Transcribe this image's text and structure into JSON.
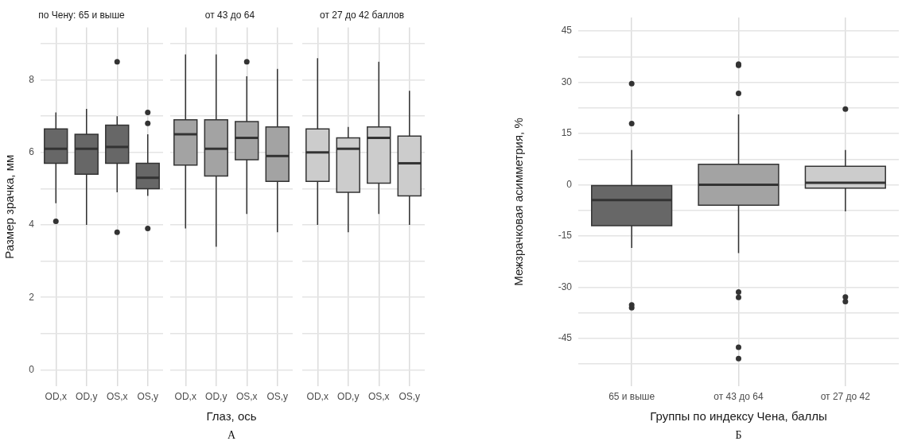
{
  "chart_data": [
    {
      "type": "box",
      "title": "по Чену: 65 и выше",
      "ylabel": "Размер зрачка, мм",
      "categories": [
        "OD,x",
        "OD,y",
        "OS,x",
        "OS,y"
      ],
      "colors": [
        "#676767",
        "#676767",
        "#676767",
        "#676767"
      ],
      "boxes": [
        {
          "low": 4.6,
          "q1": 5.7,
          "median": 6.1,
          "q3": 6.65,
          "high": 7.1,
          "outliers": [
            4.1
          ]
        },
        {
          "low": 4.0,
          "q1": 5.4,
          "median": 6.1,
          "q3": 6.5,
          "high": 7.2
        },
        {
          "low": 4.9,
          "q1": 5.7,
          "median": 6.15,
          "q3": 6.75,
          "high": 7.0,
          "outliers": [
            8.5,
            3.8
          ]
        },
        {
          "low": 4.8,
          "q1": 5.0,
          "median": 5.3,
          "q3": 5.7,
          "high": 6.5,
          "outliers": [
            7.1,
            6.8,
            3.9
          ]
        }
      ],
      "ylim": [
        -0.45,
        9.45
      ],
      "yticks": [
        0,
        {
          "value": 1,
          "label": null
        },
        2,
        {
          "value": 3,
          "label": null
        },
        4,
        {
          "value": 5,
          "label": null
        },
        6,
        {
          "value": 7,
          "label": null
        },
        8,
        {
          "value": 9,
          "label": null
        }
      ],
      "grid": true
    },
    {
      "type": "box",
      "title": "от 43 до 64",
      "xlabel": "Глаз, ось",
      "annotations": [
        "А"
      ],
      "categories": [
        "OD,x",
        "OD,y",
        "OS,x",
        "OS,y"
      ],
      "colors": [
        "#a3a3a3",
        "#a3a3a3",
        "#a3a3a3",
        "#a3a3a3"
      ],
      "boxes": [
        {
          "low": 3.9,
          "q1": 5.65,
          "median": 6.5,
          "q3": 6.9,
          "high": 8.7
        },
        {
          "low": 3.4,
          "q1": 5.35,
          "median": 6.1,
          "q3": 6.9,
          "high": 8.7
        },
        {
          "low": 4.3,
          "q1": 5.8,
          "median": 6.4,
          "q3": 6.85,
          "high": 8.1,
          "outliers": [
            8.5
          ]
        },
        {
          "low": 3.8,
          "q1": 5.2,
          "median": 5.9,
          "q3": 6.7,
          "high": 8.3
        }
      ],
      "ylim": [
        -0.45,
        9.45
      ],
      "yticks": [
        0,
        {
          "value": 1,
          "label": null
        },
        2,
        {
          "value": 3,
          "label": null
        },
        4,
        {
          "value": 5,
          "label": null
        },
        6,
        {
          "value": 7,
          "label": null
        },
        8,
        {
          "value": 9,
          "label": null
        }
      ],
      "grid": true,
      "tick_labels": "x"
    },
    {
      "type": "box",
      "title": "от 27 до 42 баллов",
      "categories": [
        "OD,x",
        "OD,y",
        "OS,x",
        "OS,y"
      ],
      "colors": [
        "#cccccc",
        "#cccccc",
        "#cccccc",
        "#cccccc"
      ],
      "boxes": [
        {
          "low": 4.0,
          "q1": 5.2,
          "median": 6.0,
          "q3": 6.65,
          "high": 8.6
        },
        {
          "low": 3.8,
          "q1": 4.9,
          "median": 6.1,
          "q3": 6.4,
          "high": 6.7
        },
        {
          "low": 4.3,
          "q1": 5.15,
          "median": 6.4,
          "q3": 6.7,
          "high": 8.5
        },
        {
          "low": 4.0,
          "q1": 4.8,
          "median": 5.7,
          "q3": 6.45,
          "high": 7.7
        }
      ],
      "ylim": [
        -0.45,
        9.45
      ],
      "yticks": [
        0,
        {
          "value": 1,
          "label": null
        },
        2,
        {
          "value": 3,
          "label": null
        },
        4,
        {
          "value": 5,
          "label": null
        },
        6,
        {
          "value": 7,
          "label": null
        },
        8,
        {
          "value": 9,
          "label": null
        }
      ],
      "grid": true,
      "tick_labels": "x"
    },
    {
      "type": "box",
      "xlabel": "Группы по индексу Чена, баллы",
      "ylabel": "Межзрачковая асимметрия, %",
      "annotations": [
        "Б"
      ],
      "categories": [
        "65 и выше",
        "от 43 до 64",
        "от 27 до 42"
      ],
      "colors": [
        "#676767",
        "#a3a3a3",
        "#cccccc"
      ],
      "boxes": [
        {
          "low": -18.5,
          "q1": -12,
          "median": -4.5,
          "q3": -0.2,
          "high": 10.2,
          "outliers": [
            29.6,
            17.9,
            -35.2,
            -36
          ]
        },
        {
          "low": -20,
          "q1": -6,
          "median": 0,
          "q3": 6,
          "high": 20.6,
          "outliers": [
            35.3,
            35,
            26.8,
            -31.4,
            -33,
            -47.6,
            -50.9
          ]
        },
        {
          "low": -7.8,
          "q1": -1,
          "median": 0.6,
          "q3": 5.4,
          "high": 10.2,
          "outliers": [
            22.2,
            -32.9,
            -34.2
          ]
        }
      ],
      "ylim": [
        -59,
        49
      ],
      "yticks": [
        -45,
        -30,
        -15,
        0,
        15,
        30,
        45,
        {
          "value": -52.5,
          "label": null
        },
        {
          "value": -37.5,
          "label": null
        },
        {
          "value": -22.5,
          "label": null
        },
        {
          "value": -7.5,
          "label": null
        },
        {
          "value": 7.5,
          "label": null
        },
        {
          "value": 22.5,
          "label": null
        },
        {
          "value": 37.5,
          "label": null
        }
      ],
      "grid": true
    }
  ]
}
